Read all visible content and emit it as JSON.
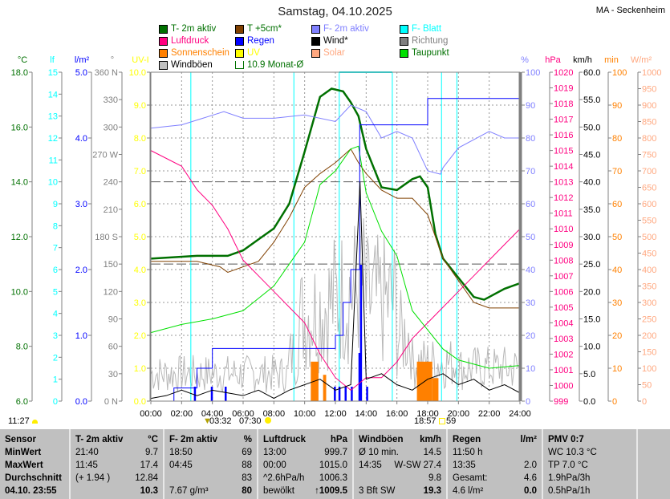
{
  "title": "Samstag, 04.10.2025",
  "station": "MA - Seckenheim",
  "legend": [
    {
      "label": "T- 2m aktiv",
      "color": "#007000",
      "text": "#007000"
    },
    {
      "label": "T +5cm*",
      "color": "#804000",
      "text": "#007000"
    },
    {
      "label": "F- 2m aktiv",
      "color": "#8080ff",
      "text": "#8080ff"
    },
    {
      "label": "F- Blatt",
      "color": "#00ffff",
      "text": "#00ffff"
    },
    {
      "label": "Luftdruck",
      "color": "#ff0080",
      "text": "#ff0080"
    },
    {
      "label": "Regen",
      "color": "#0000ff",
      "text": "#0000ff"
    },
    {
      "label": "Wind*",
      "color": "#000000",
      "text": "#000000"
    },
    {
      "label": "Richtung",
      "color": "#808080",
      "text": "#808080"
    },
    {
      "label": "Sonnenschein",
      "color": "#ff8000",
      "text": "#ff8000"
    },
    {
      "label": "UV",
      "color": "#ffff00",
      "text": "#ffff00"
    },
    {
      "label": "Solar",
      "color": "#ffa880",
      "text": "#ffa880"
    },
    {
      "label": "Taupunkt",
      "color": "#00e000",
      "text": "#007000"
    },
    {
      "label": "Windböen",
      "color": "#c0c0c0",
      "text": "#000000"
    },
    {
      "label": "10.9 Monat-Ø",
      "color": "#ffffff",
      "text": "#007000"
    }
  ],
  "footer": {
    "left_time": "11:27",
    "moonrise": "03:32",
    "sunrise": "07:30",
    "sunset": "18:57",
    "moonset": "59"
  },
  "chart_data": {
    "type": "line",
    "title": "Samstag, 04.10.2025",
    "xlabel": "",
    "xlim": [
      0,
      24
    ],
    "x_ticks": [
      "00:00",
      "02:00",
      "04:00",
      "06:00",
      "08:00",
      "10:00",
      "12:00",
      "14:00",
      "16:00",
      "18:00",
      "20:00",
      "22:00",
      "24:00"
    ],
    "axes": [
      {
        "unit": "°C",
        "color": "#007000",
        "min": 6,
        "max": 18,
        "ticks": [
          "6.0",
          "8.0",
          "10.0",
          "12.0",
          "14.0",
          "16.0",
          "18.0"
        ]
      },
      {
        "unit": "lf",
        "color": "#00ffff",
        "min": 0,
        "max": 15,
        "ticks": [
          "0",
          "1",
          "2",
          "3",
          "4",
          "5",
          "6",
          "7",
          "8",
          "9",
          "10",
          "11",
          "12",
          "13",
          "14",
          "15"
        ]
      },
      {
        "unit": "l/m²",
        "color": "#0000ff",
        "min": 0,
        "max": 5,
        "ticks": [
          "0.0",
          "1.0",
          "2.0",
          "3.0",
          "4.0",
          "5.0"
        ]
      },
      {
        "unit": "°",
        "color": "#808080",
        "min": 0,
        "max": 360,
        "ticks": [
          "0 N",
          "30",
          "60",
          "90",
          "120",
          "150",
          "180 S",
          "210",
          "240",
          "270 W",
          "300",
          "330",
          "360 N"
        ]
      },
      {
        "unit": "UV-I",
        "color": "#ffff00",
        "min": 0,
        "max": 10,
        "ticks": [
          "0.0",
          "1.0",
          "2.0",
          "3.0",
          "4.0",
          "5.0",
          "6.0",
          "7.0",
          "8.0",
          "9.0",
          "10.0"
        ]
      },
      {
        "unit": "%",
        "color": "#8080ff",
        "min": 0,
        "max": 100,
        "ticks": [
          "0",
          "10",
          "20",
          "30",
          "40",
          "50",
          "60",
          "70",
          "80",
          "90",
          "100"
        ]
      },
      {
        "unit": "hPa",
        "color": "#ff0080",
        "min": 999,
        "max": 1020,
        "ticks": [
          "999",
          "1000",
          "1001",
          "1002",
          "1003",
          "1004",
          "1005",
          "1006",
          "1007",
          "1008",
          "1009",
          "1010",
          "1011",
          "1012",
          "1013",
          "1014",
          "1015",
          "1016",
          "1017",
          "1018",
          "1019",
          "1020"
        ]
      },
      {
        "unit": "km/h",
        "color": "#000000",
        "min": 0,
        "max": 60,
        "ticks": [
          "0.0",
          "5.0",
          "10.0",
          "15.0",
          "20.0",
          "25.0",
          "30.0",
          "35.0",
          "40.0",
          "45.0",
          "50.0",
          "55.0",
          "60.0"
        ]
      },
      {
        "unit": "min",
        "color": "#ff8000",
        "min": 0,
        "max": 100,
        "ticks": [
          "0",
          "10",
          "20",
          "30",
          "40",
          "50",
          "60",
          "70",
          "80",
          "90",
          "100"
        ]
      },
      {
        "unit": "W/m²",
        "color": "#ffa880",
        "min": 0,
        "max": 1000,
        "ticks": [
          "0",
          "50",
          "100",
          "150",
          "200",
          "250",
          "300",
          "350",
          "400",
          "450",
          "500",
          "550",
          "600",
          "650",
          "700",
          "750",
          "800",
          "850",
          "900",
          "950",
          "1000"
        ]
      }
    ],
    "series": [
      {
        "name": "T- 2m aktiv",
        "axis": 0,
        "color": "#007000",
        "width": 2.5,
        "x": [
          0,
          3,
          5,
          6,
          7,
          8,
          9,
          10,
          11,
          11.75,
          12.5,
          13,
          13.5,
          14,
          15,
          16,
          17,
          17.5,
          18,
          18.5,
          19,
          20,
          21,
          21.67,
          22,
          23,
          24
        ],
        "y": [
          11.2,
          11.3,
          11.3,
          11.5,
          11.9,
          12.3,
          13.2,
          15.1,
          17.1,
          17.4,
          17.3,
          16.9,
          16.4,
          15.2,
          13.8,
          13.7,
          14.1,
          14.2,
          13.8,
          12.1,
          11.2,
          10.5,
          9.8,
          9.7,
          9.8,
          10.1,
          10.3
        ]
      },
      {
        "name": "T +5cm*",
        "axis": 0,
        "color": "#804000",
        "width": 1,
        "x": [
          0,
          3,
          4.5,
          5,
          6,
          7,
          8,
          9,
          10,
          11,
          12,
          13,
          13.5,
          14,
          15,
          16,
          17,
          18,
          19,
          20,
          21,
          22,
          24
        ],
        "y": [
          11.1,
          11.1,
          10.9,
          10.7,
          10.9,
          11.1,
          11.8,
          12.7,
          13.8,
          14.3,
          14.7,
          15.2,
          14.7,
          14.3,
          13.7,
          13.4,
          13.4,
          12.8,
          11.2,
          10.4,
          9.6,
          9.4,
          9.4
        ]
      },
      {
        "name": "F- 2m aktiv",
        "axis": 5,
        "color": "#8080ff",
        "width": 1,
        "x": [
          0,
          2,
          4.75,
          6,
          8,
          10,
          12,
          13,
          14,
          15,
          16,
          17,
          18,
          18.83,
          19,
          20,
          22,
          23,
          24
        ],
        "y": [
          83,
          84,
          88,
          86,
          86,
          87,
          85,
          90,
          88,
          80,
          82,
          80,
          70,
          69,
          71,
          77,
          82,
          80,
          80
        ]
      },
      {
        "name": "Luftdruck",
        "axis": 6,
        "color": "#ff0080",
        "width": 1,
        "x": [
          0,
          2,
          3,
          4,
          5,
          6,
          7,
          8,
          9,
          10,
          11,
          12,
          13,
          14,
          15,
          16,
          17,
          18,
          19,
          20,
          21,
          22,
          23,
          24
        ],
        "y": [
          1015,
          1014,
          1012.5,
          1011.5,
          1010,
          1008,
          1007,
          1006,
          1005,
          1004,
          1002,
          1000.5,
          999.7,
          1000.5,
          1000.5,
          1001.5,
          1003,
          1004,
          1005,
          1006,
          1007,
          1008,
          1009,
          1010
        ]
      },
      {
        "name": "Taupunkt",
        "axis": 0,
        "color": "#00e000",
        "width": 1,
        "x": [
          0,
          2,
          4,
          6,
          8,
          9,
          10,
          11,
          12,
          13,
          13.5,
          14,
          15,
          16,
          17,
          18,
          19,
          20,
          22,
          24
        ],
        "y": [
          8.5,
          8.8,
          9,
          9.3,
          10.2,
          11,
          11.8,
          13.9,
          14.4,
          15.2,
          15.3,
          13.6,
          12.2,
          11.3,
          9.3,
          8.6,
          7.9,
          7.5,
          7.2,
          7.3
        ]
      },
      {
        "name": "Regen",
        "axis": 2,
        "color": "#0000ff",
        "width": 1,
        "step": true,
        "x": [
          0,
          1.5,
          3,
          4,
          11.8,
          12,
          12.5,
          13,
          13.58,
          18,
          24
        ],
        "y": [
          0,
          0.2,
          0.5,
          0.8,
          0.8,
          1.0,
          1.5,
          2.0,
          4.2,
          4.6,
          4.6
        ]
      },
      {
        "name": "Wind*",
        "axis": 7,
        "color": "#000000",
        "width": 1,
        "x": [
          0,
          1,
          2,
          3,
          4,
          5,
          6,
          7,
          8,
          9,
          10,
          11,
          12,
          13,
          13.6,
          14,
          15,
          16,
          17,
          18,
          19,
          20,
          21,
          22,
          23,
          24
        ],
        "y": [
          0.5,
          1,
          2,
          1,
          2,
          1.5,
          1,
          2,
          0.5,
          2,
          3,
          4,
          2,
          3,
          40,
          4,
          5,
          3,
          2,
          4,
          5,
          3,
          4,
          2,
          3,
          1.5
        ]
      }
    ],
    "monthly_mean": 10.9,
    "direction_refs": [
      240,
      150
    ]
  },
  "table": {
    "columns": [
      {
        "header": [
          "Sensor",
          ""
        ],
        "rows": [
          [
            "MinWert",
            ""
          ],
          [
            "MaxWert",
            ""
          ],
          [
            "Durchschnitt",
            ""
          ],
          [
            "04.10. 23:55",
            ""
          ]
        ],
        "bold_rows": true
      },
      {
        "header": [
          "T- 2m aktiv",
          "°C"
        ],
        "rows": [
          [
            "21:40",
            "9.7"
          ],
          [
            "11:45",
            "17.4"
          ],
          [
            "(+ 1.94 )",
            "12.84"
          ],
          [
            "",
            "10.3"
          ]
        ]
      },
      {
        "header": [
          "F- 2m aktiv",
          "%"
        ],
        "rows": [
          [
            "18:50",
            "69"
          ],
          [
            "04:45",
            "88"
          ],
          [
            "",
            "83"
          ],
          [
            "7.67 g/m³",
            "80"
          ]
        ]
      },
      {
        "header": [
          "Luftdruck",
          "hPa"
        ],
        "rows": [
          [
            "13:00",
            "999.7"
          ],
          [
            "00:00",
            "1015.0"
          ],
          [
            "^2.6hPa/h",
            "1006.3"
          ],
          [
            "bewölkt",
            "↑1009.5"
          ]
        ]
      },
      {
        "header": [
          "Windböen",
          "km/h"
        ],
        "rows": [
          [
            "Ø 10 min.",
            "14.5"
          ],
          [
            "14:35",
            "W-SW 27.4"
          ],
          [
            "",
            "9.8"
          ],
          [
            "3 Bft SW",
            "19.3"
          ]
        ]
      },
      {
        "header": [
          "Regen",
          "l/m²"
        ],
        "rows": [
          [
            "11:50 h",
            ""
          ],
          [
            "13:35",
            "2.0"
          ],
          [
            "Gesamt:",
            "4.6"
          ],
          [
            "4.6 l/m²",
            "0.0"
          ]
        ]
      },
      {
        "header": [
          "PMV 0:7",
          ""
        ],
        "rows": [
          [
            "WC 10.3 °C",
            ""
          ],
          [
            "TP 7.0 °C",
            ""
          ],
          [
            "1.9hPa/3h",
            ""
          ],
          [
            "0.5hPa/1h",
            ""
          ]
        ]
      }
    ]
  }
}
